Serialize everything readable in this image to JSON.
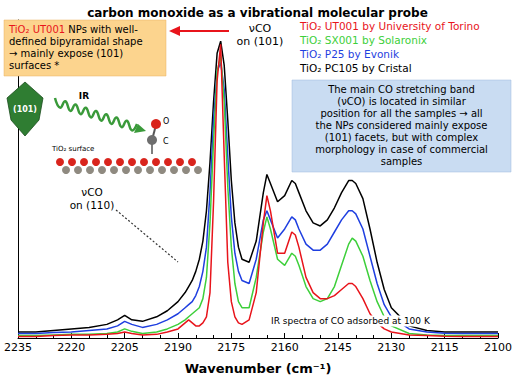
{
  "chart_data": {
    "type": "line",
    "title": "carbon monoxide as a vibrational molecular probe",
    "x_label": "Wavenumber (cm⁻¹)",
    "x": [
      2235,
      2230,
      2225,
      2220,
      2215,
      2210,
      2207,
      2205,
      2203,
      2200,
      2196,
      2193,
      2190,
      2188,
      2187,
      2186,
      2185,
      2184,
      2183,
      2182,
      2181,
      2180,
      2179,
      2178,
      2177,
      2176,
      2175,
      2174,
      2173,
      2172,
      2170,
      2168,
      2166,
      2165,
      2164,
      2162,
      2160,
      2158,
      2157,
      2156,
      2154,
      2152,
      2150,
      2148,
      2146,
      2144,
      2142,
      2141,
      2140,
      2138,
      2136,
      2134,
      2132,
      2130,
      2125,
      2120,
      2115,
      2110,
      2105,
      2100
    ],
    "xlim": [
      2235,
      2100
    ],
    "xticks": [
      2235,
      2220,
      2205,
      2190,
      2175,
      2160,
      2145,
      2130,
      2115,
      2100
    ],
    "ylim": [
      0,
      1.05
    ],
    "yticks": [],
    "tick_labels": "x",
    "grid": false,
    "legend": "upper right",
    "series": [
      {
        "name": "TiO₂ UT001 by University of Torino",
        "color": "#e8141b",
        "values": [
          0.005,
          0.005,
          0.008,
          0.01,
          0.01,
          0.012,
          0.015,
          0.02,
          0.015,
          0.01,
          0.012,
          0.02,
          0.03,
          0.05,
          0.06,
          0.05,
          0.04,
          0.04,
          0.05,
          0.07,
          0.15,
          0.45,
          0.85,
          0.97,
          0.6,
          0.25,
          0.12,
          0.07,
          0.05,
          0.045,
          0.06,
          0.15,
          0.38,
          0.47,
          0.42,
          0.28,
          0.28,
          0.35,
          0.34,
          0.3,
          0.2,
          0.15,
          0.13,
          0.13,
          0.14,
          0.16,
          0.18,
          0.18,
          0.17,
          0.13,
          0.08,
          0.05,
          0.03,
          0.02,
          0.01,
          0.008,
          0.006,
          0.005,
          0.005,
          0.005
        ]
      },
      {
        "name": "TiO₂ SX001 by Solaronix",
        "color": "#3dcf3a",
        "values": [
          0.008,
          0.008,
          0.01,
          0.012,
          0.012,
          0.015,
          0.02,
          0.03,
          0.022,
          0.015,
          0.02,
          0.03,
          0.045,
          0.06,
          0.07,
          0.08,
          0.09,
          0.1,
          0.13,
          0.2,
          0.38,
          0.65,
          0.88,
          0.93,
          0.78,
          0.5,
          0.3,
          0.18,
          0.12,
          0.1,
          0.1,
          0.2,
          0.35,
          0.4,
          0.36,
          0.26,
          0.24,
          0.28,
          0.27,
          0.24,
          0.17,
          0.13,
          0.12,
          0.13,
          0.17,
          0.24,
          0.31,
          0.33,
          0.32,
          0.27,
          0.19,
          0.12,
          0.07,
          0.04,
          0.015,
          0.01,
          0.008,
          0.008,
          0.008,
          0.008
        ]
      },
      {
        "name": "TiO₂ P25 by Evonik",
        "color": "#1f3fe0",
        "values": [
          0.015,
          0.015,
          0.018,
          0.02,
          0.025,
          0.03,
          0.04,
          0.055,
          0.045,
          0.035,
          0.045,
          0.06,
          0.08,
          0.1,
          0.11,
          0.12,
          0.14,
          0.17,
          0.22,
          0.3,
          0.48,
          0.72,
          0.88,
          0.91,
          0.82,
          0.6,
          0.4,
          0.28,
          0.22,
          0.19,
          0.18,
          0.26,
          0.39,
          0.42,
          0.39,
          0.33,
          0.36,
          0.4,
          0.39,
          0.36,
          0.31,
          0.29,
          0.29,
          0.31,
          0.35,
          0.39,
          0.42,
          0.42,
          0.41,
          0.36,
          0.27,
          0.18,
          0.11,
          0.07,
          0.03,
          0.02,
          0.016,
          0.015,
          0.015,
          0.015
        ]
      },
      {
        "name": "TiO₂ PC105 by Cristal",
        "color": "#000000",
        "values": [
          0.02,
          0.02,
          0.025,
          0.03,
          0.035,
          0.045,
          0.06,
          0.075,
          0.06,
          0.055,
          0.07,
          0.09,
          0.12,
          0.15,
          0.17,
          0.19,
          0.22,
          0.26,
          0.32,
          0.42,
          0.58,
          0.78,
          0.94,
          0.98,
          0.9,
          0.72,
          0.52,
          0.38,
          0.3,
          0.26,
          0.25,
          0.32,
          0.48,
          0.54,
          0.51,
          0.45,
          0.47,
          0.52,
          0.51,
          0.48,
          0.42,
          0.38,
          0.37,
          0.39,
          0.43,
          0.48,
          0.52,
          0.52,
          0.51,
          0.46,
          0.36,
          0.25,
          0.16,
          0.1,
          0.04,
          0.025,
          0.02,
          0.02,
          0.02,
          0.02
        ]
      }
    ],
    "annotations": {
      "peak_101": [
        "νCO",
        "on (101)"
      ],
      "peak_110": [
        "νCO",
        "on (110)"
      ],
      "conditions": "IR spectra of CO adsorbed at 100 K",
      "shape_box": {
        "highlight": "TiO₂ UT001",
        "lines": [
          " NPs with well-",
          "defined bipyramidal shape",
          "→ mainly expose (101)",
          "surfaces *"
        ]
      },
      "facet_label": "(101)",
      "illustration": {
        "beam": "IR",
        "surface": "TiO₂ surface",
        "atoms": [
          "O",
          "C"
        ]
      },
      "summary_box": [
        "The main CO stretching band",
        "(νCO) is located in similar",
        "position for all the samples → all",
        "the NPs considered mainly expose",
        "(101) facets, but with complex",
        "morphology in case of commercial",
        "samples"
      ]
    }
  }
}
